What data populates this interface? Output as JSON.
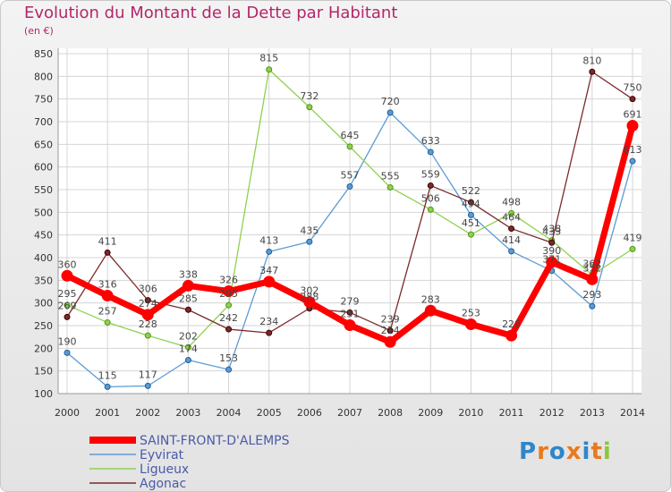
{
  "title": "Evolution du Montant de la Dette par Habitant",
  "unit": "(en €)",
  "logo": "Proxiti",
  "chart_data": {
    "type": "line",
    "title": "Evolution du Montant de la Dette par Habitant",
    "ylabel": "(en €)",
    "ylim": [
      100,
      850
    ],
    "yticks": [
      100,
      150,
      200,
      250,
      300,
      350,
      400,
      450,
      500,
      550,
      600,
      650,
      700,
      750,
      800,
      850
    ],
    "x": [
      "2000",
      "2001",
      "2002",
      "2003",
      "2004",
      "2005",
      "2006",
      "2007",
      "2008",
      "2009",
      "2010",
      "2011",
      "2012",
      "2013",
      "2014"
    ],
    "grid": true,
    "legend": "bottom-left",
    "series": [
      {
        "name": "Eyvirat",
        "color": "#5b9bd5",
        "values": [
          190,
          115,
          117,
          174,
          153,
          413,
          435,
          557,
          720,
          633,
          494,
          414,
          371,
          293,
          613
        ]
      },
      {
        "name": "Ligueux",
        "color": "#8fd14f",
        "values": [
          295,
          257,
          228,
          202,
          295,
          815,
          732,
          645,
          555,
          506,
          451,
          498,
          438,
          362,
          419
        ]
      },
      {
        "name": "Agonac",
        "color": "#7a2a2a",
        "values": [
          269,
          411,
          306,
          285,
          242,
          234,
          288,
          279,
          239,
          559,
          522,
          464,
          433,
          810,
          750
        ]
      },
      {
        "name": "SAINT-FRONT-D'ALEMPS",
        "color": "#ff0000",
        "values": [
          360,
          316,
          274,
          338,
          326,
          347,
          302,
          251,
          214,
          283,
          253,
          228,
          390,
          352,
          691
        ]
      }
    ],
    "legend_order": [
      3,
      0,
      1,
      2
    ]
  }
}
